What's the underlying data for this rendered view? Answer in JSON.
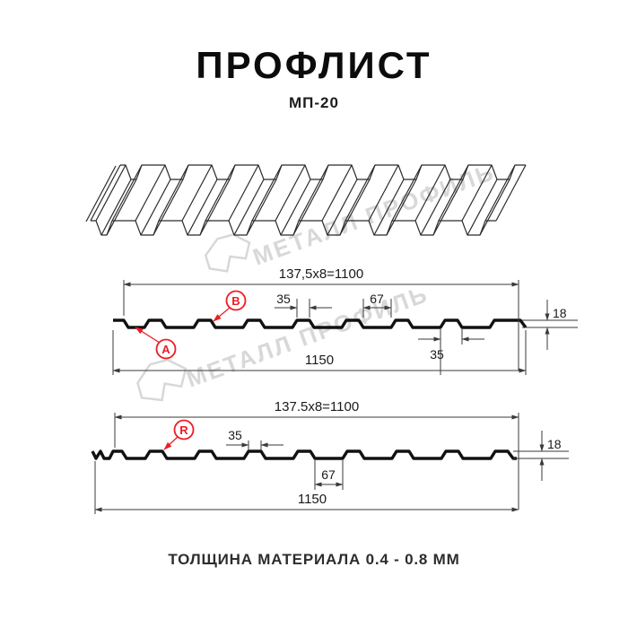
{
  "header": {
    "title": "ПРОФЛИСТ",
    "subtitle": "МП-20"
  },
  "watermark": {
    "text": "МЕТАЛЛ ПРОФИЛЬ",
    "color": "#d8d8d8"
  },
  "profile_top": {
    "pitch_dim": "137,5x8=1100",
    "crest_width": "35",
    "valley_width": "67",
    "height": "18",
    "crest_base_width": "35",
    "overall_width": "1150",
    "label_a": "A",
    "label_b": "B"
  },
  "profile_bottom": {
    "pitch_dim": "137.5x8=1100",
    "crest_width": "35",
    "valley_width": "67",
    "height": "18",
    "overall_width": "1150",
    "label_r": "R"
  },
  "footer": {
    "material_note": "ТОЛЩИНА МАТЕРИАЛА 0.4 - 0.8 ММ"
  },
  "colors": {
    "accent_red": "#ed1c24",
    "line": "#1a1a1a",
    "watermark_gray": "#d8d8d8"
  }
}
